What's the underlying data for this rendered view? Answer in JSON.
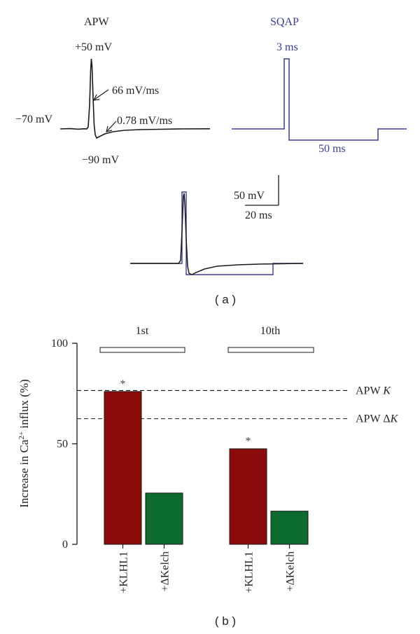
{
  "panel_a": {
    "caption": "( a )",
    "apw": {
      "title": "APW",
      "peak_label": "+50 mV",
      "rest_label": "−70 mV",
      "min_label": "−90 mV",
      "fast_slope_label": "66 mV/ms",
      "slow_slope_label": "0.78 mV/ms",
      "trace_color": "#1a1a1a"
    },
    "sqap": {
      "title": "SQAP",
      "pulse_label": "3 ms",
      "step_label": "50 ms",
      "color": "#3b3b8f"
    },
    "scale_bar": {
      "voltage_label": "50 mV",
      "time_label": "20 ms"
    }
  },
  "panel_b": {
    "caption": "( b )",
    "ylabel_prefix": "Increase in Ca",
    "ylabel_sup": "2+",
    "ylabel_suffix": " influx (%)",
    "groups": [
      "1st",
      "10th"
    ],
    "reference_lines": [
      {
        "label_prefix": "APW ",
        "label_italic": "K",
        "value": 76.5
      },
      {
        "label_prefix": "APW Δ",
        "label_italic": "K",
        "value": 62.5
      }
    ]
  },
  "chart_data": {
    "type": "bar",
    "categories": [
      "1st",
      "10th"
    ],
    "series": [
      {
        "name": "+KLHL1",
        "values": [
          76,
          47.5
        ],
        "color": "#8b0b0b",
        "significant": [
          true,
          true
        ]
      },
      {
        "name": "+ΔKelch",
        "values": [
          25.5,
          16.5
        ],
        "color": "#0d6b2f",
        "significant": [
          false,
          false
        ]
      }
    ],
    "yticks": [
      0,
      50,
      100
    ],
    "ylim": [
      0,
      100
    ],
    "significance_marker": "*",
    "grid": false
  }
}
